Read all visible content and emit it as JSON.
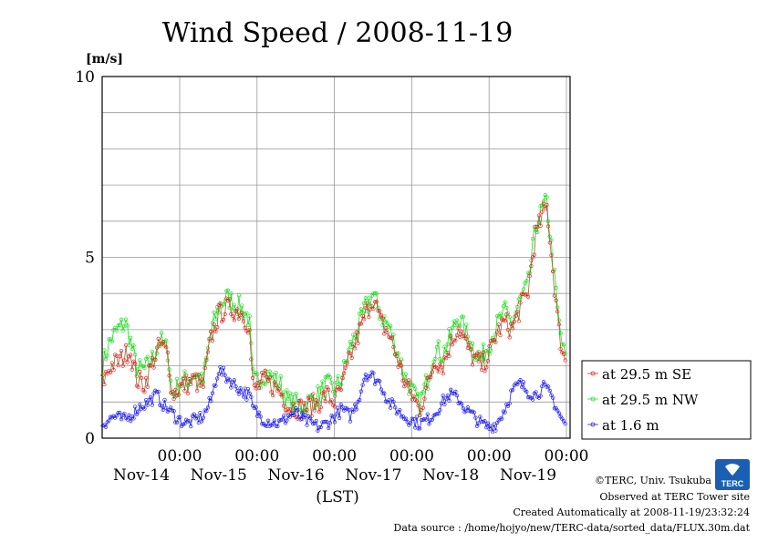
{
  "chart_data": {
    "type": "line",
    "title": "Wind Speed / 2008-11-19",
    "ylabel": "[m/s]",
    "xlabel": "(LST)",
    "ylim": [
      0,
      10
    ],
    "yticks": [
      "0",
      "5",
      "10"
    ],
    "xlim_days": [
      0,
      6
    ],
    "xticks": [
      {
        "time": "00:00",
        "date": "Nov-14"
      },
      {
        "time": "00:00",
        "date": "Nov-15"
      },
      {
        "time": "00:00",
        "date": "Nov-16"
      },
      {
        "time": "00:00",
        "date": "Nov-17"
      },
      {
        "time": "00:00",
        "date": "Nov-18"
      },
      {
        "time": "00:00",
        "date": "Nov-19"
      }
    ],
    "grid": true,
    "legend_position": "right",
    "series": [
      {
        "name": "at 29.5 m SE",
        "color": "#ee2222",
        "line_color": "#996633",
        "anchors": [
          [
            0,
            1.5
          ],
          [
            0.1,
            2.0
          ],
          [
            0.2,
            2.1
          ],
          [
            0.3,
            2.3
          ],
          [
            0.35,
            2.5
          ],
          [
            0.45,
            1.6
          ],
          [
            0.55,
            1.5
          ],
          [
            0.65,
            2.1
          ],
          [
            0.75,
            2.6
          ],
          [
            0.85,
            2.3
          ],
          [
            0.9,
            1.2
          ],
          [
            1.0,
            1.4
          ],
          [
            1.2,
            1.6
          ],
          [
            1.3,
            1.4
          ],
          [
            1.4,
            2.7
          ],
          [
            1.5,
            3.4
          ],
          [
            1.6,
            3.6
          ],
          [
            1.8,
            3.5
          ],
          [
            1.9,
            3.1
          ],
          [
            1.95,
            1.3
          ],
          [
            2.1,
            1.6
          ],
          [
            2.3,
            1.3
          ],
          [
            2.4,
            0.9
          ],
          [
            2.6,
            0.8
          ],
          [
            2.8,
            1.0
          ],
          [
            2.9,
            1.2
          ],
          [
            3.0,
            1.0
          ],
          [
            3.1,
            1.4
          ],
          [
            3.2,
            2.2
          ],
          [
            3.3,
            2.8
          ],
          [
            3.4,
            3.4
          ],
          [
            3.5,
            3.9
          ],
          [
            3.6,
            3.2
          ],
          [
            3.7,
            2.9
          ],
          [
            3.8,
            2.3
          ],
          [
            3.9,
            1.6
          ],
          [
            4.0,
            1.2
          ],
          [
            4.1,
            0.8
          ],
          [
            4.2,
            1.4
          ],
          [
            4.3,
            2.2
          ],
          [
            4.4,
            2.0
          ],
          [
            4.5,
            2.6
          ],
          [
            4.6,
            3.1
          ],
          [
            4.7,
            2.6
          ],
          [
            4.8,
            2.2
          ],
          [
            4.9,
            2.0
          ],
          [
            5.0,
            2.3
          ],
          [
            5.1,
            2.9
          ],
          [
            5.2,
            3.2
          ],
          [
            5.3,
            3.0
          ],
          [
            5.4,
            3.6
          ],
          [
            5.5,
            4.0
          ],
          [
            5.6,
            5.6
          ],
          [
            5.7,
            6.2
          ],
          [
            5.75,
            6.4
          ],
          [
            5.8,
            5.2
          ],
          [
            5.9,
            3.0
          ],
          [
            5.97,
            2.2
          ]
        ]
      },
      {
        "name": "at 29.5 m NW",
        "color": "#22dd22",
        "line_color": "#22dd22",
        "anchors": [
          [
            0,
            2.0
          ],
          [
            0.1,
            2.7
          ],
          [
            0.2,
            3.0
          ],
          [
            0.3,
            3.2
          ],
          [
            0.35,
            2.8
          ],
          [
            0.45,
            1.9
          ],
          [
            0.55,
            1.9
          ],
          [
            0.65,
            2.2
          ],
          [
            0.75,
            2.7
          ],
          [
            0.85,
            2.4
          ],
          [
            0.9,
            1.2
          ],
          [
            1.0,
            1.5
          ],
          [
            1.2,
            1.8
          ],
          [
            1.3,
            1.5
          ],
          [
            1.4,
            2.9
          ],
          [
            1.5,
            3.6
          ],
          [
            1.6,
            3.9
          ],
          [
            1.8,
            3.6
          ],
          [
            1.9,
            3.3
          ],
          [
            1.95,
            1.5
          ],
          [
            2.1,
            1.8
          ],
          [
            2.3,
            1.5
          ],
          [
            2.4,
            1.0
          ],
          [
            2.6,
            0.9
          ],
          [
            2.8,
            1.2
          ],
          [
            2.9,
            1.5
          ],
          [
            3.0,
            1.3
          ],
          [
            3.1,
            1.7
          ],
          [
            3.2,
            2.5
          ],
          [
            3.3,
            3.0
          ],
          [
            3.4,
            3.6
          ],
          [
            3.5,
            4.0
          ],
          [
            3.6,
            3.4
          ],
          [
            3.7,
            3.1
          ],
          [
            3.8,
            2.5
          ],
          [
            3.9,
            1.8
          ],
          [
            4.0,
            1.3
          ],
          [
            4.1,
            0.9
          ],
          [
            4.2,
            1.6
          ],
          [
            4.3,
            2.5
          ],
          [
            4.4,
            2.3
          ],
          [
            4.5,
            2.8
          ],
          [
            4.6,
            3.4
          ],
          [
            4.7,
            2.9
          ],
          [
            4.8,
            2.5
          ],
          [
            4.9,
            2.2
          ],
          [
            5.0,
            2.6
          ],
          [
            5.1,
            3.1
          ],
          [
            5.2,
            3.5
          ],
          [
            5.3,
            3.2
          ],
          [
            5.4,
            3.8
          ],
          [
            5.5,
            4.2
          ],
          [
            5.6,
            5.8
          ],
          [
            5.7,
            6.4
          ],
          [
            5.75,
            6.5
          ],
          [
            5.8,
            5.4
          ],
          [
            5.9,
            3.2
          ],
          [
            5.97,
            2.3
          ]
        ]
      },
      {
        "name": "at 1.6 m",
        "color": "#2222ee",
        "line_color": "#2222ee",
        "anchors": [
          [
            0,
            0.4
          ],
          [
            0.15,
            0.6
          ],
          [
            0.3,
            0.5
          ],
          [
            0.4,
            0.7
          ],
          [
            0.5,
            0.9
          ],
          [
            0.6,
            1.0
          ],
          [
            0.7,
            1.2
          ],
          [
            0.8,
            0.9
          ],
          [
            0.9,
            0.7
          ],
          [
            1.0,
            0.5
          ],
          [
            1.1,
            0.4
          ],
          [
            1.2,
            0.5
          ],
          [
            1.3,
            0.6
          ],
          [
            1.4,
            1.0
          ],
          [
            1.5,
            1.9
          ],
          [
            1.6,
            1.7
          ],
          [
            1.7,
            1.5
          ],
          [
            1.8,
            1.3
          ],
          [
            1.9,
            1.2
          ],
          [
            1.95,
            0.8
          ],
          [
            2.1,
            0.5
          ],
          [
            2.3,
            0.4
          ],
          [
            2.4,
            0.6
          ],
          [
            2.5,
            0.7
          ],
          [
            2.6,
            0.5
          ],
          [
            2.7,
            0.4
          ],
          [
            2.8,
            0.3
          ],
          [
            2.9,
            0.4
          ],
          [
            3.0,
            0.6
          ],
          [
            3.1,
            0.8
          ],
          [
            3.2,
            0.6
          ],
          [
            3.3,
            1.0
          ],
          [
            3.4,
            1.8
          ],
          [
            3.5,
            1.7
          ],
          [
            3.6,
            1.5
          ],
          [
            3.7,
            1.0
          ],
          [
            3.8,
            0.8
          ],
          [
            3.9,
            0.6
          ],
          [
            4.0,
            0.5
          ],
          [
            4.1,
            0.4
          ],
          [
            4.2,
            0.5
          ],
          [
            4.3,
            0.7
          ],
          [
            4.4,
            1.0
          ],
          [
            4.5,
            1.2
          ],
          [
            4.6,
            1.1
          ],
          [
            4.7,
            0.8
          ],
          [
            4.8,
            0.6
          ],
          [
            4.9,
            0.4
          ],
          [
            5.0,
            0.3
          ],
          [
            5.1,
            0.4
          ],
          [
            5.2,
            0.8
          ],
          [
            5.3,
            1.3
          ],
          [
            5.4,
            1.5
          ],
          [
            5.5,
            1.3
          ],
          [
            5.6,
            1.2
          ],
          [
            5.7,
            1.4
          ],
          [
            5.8,
            1.2
          ],
          [
            5.9,
            0.7
          ],
          [
            5.97,
            0.4
          ]
        ]
      }
    ]
  },
  "credits": {
    "copyright": "©TERC, Univ. Tsukuba",
    "observed": "Observed at TERC Tower site",
    "created": "Created Automatically at 2008-11-19/23:32:24",
    "source": "Data source : /home/hojyo/new/TERC-data/sorted_data/FLUX.30m.dat"
  },
  "logo": {
    "text": "TERC",
    "color": "#1a5fb4"
  }
}
